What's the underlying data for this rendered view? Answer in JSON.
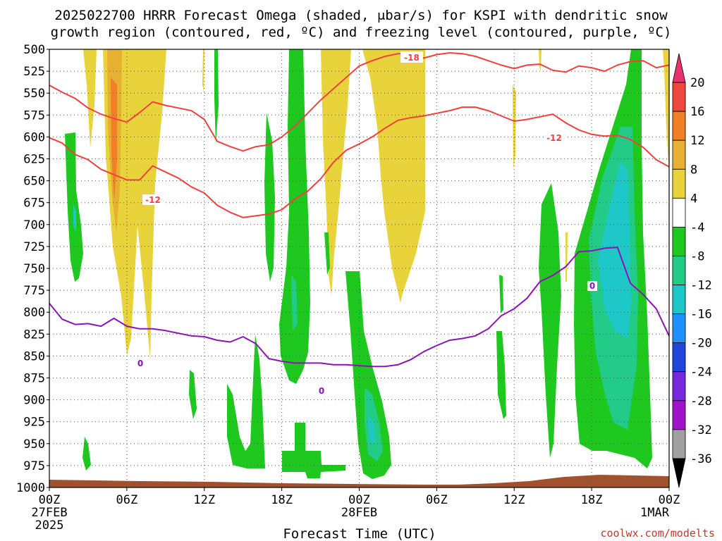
{
  "title": {
    "line1": "2025022700 HRRR Forecast Omega (shaded, μbar/s) for KSPI with dendritic snow",
    "line2": "growth region (contoured, red, ºC) and freezing level (contoured, purple, ºC)"
  },
  "credit": "coolwx.com/modelts",
  "chart_data": {
    "type": "time-height contour",
    "xlabel": "Forecast Time (UTC)",
    "ylabel": "",
    "x_ticks": [
      {
        "hour": 0,
        "label": "00Z",
        "sub": "27FEB",
        "sub2": "2025"
      },
      {
        "hour": 6,
        "label": "06Z"
      },
      {
        "hour": 12,
        "label": "12Z"
      },
      {
        "hour": 18,
        "label": "18Z"
      },
      {
        "hour": 24,
        "label": "00Z",
        "sub": "28FEB"
      },
      {
        "hour": 30,
        "label": "06Z"
      },
      {
        "hour": 36,
        "label": "12Z"
      },
      {
        "hour": 42,
        "label": "18Z"
      },
      {
        "hour": 48,
        "label": "00Z",
        "sub": "1MAR"
      }
    ],
    "xlim": [
      0,
      48
    ],
    "ylim": [
      1000,
      500
    ],
    "y_ticks": [
      500,
      525,
      550,
      575,
      600,
      625,
      650,
      675,
      700,
      725,
      750,
      775,
      800,
      825,
      850,
      875,
      900,
      925,
      950,
      975,
      1000
    ],
    "grid": true,
    "colorbar": {
      "labels": [
        "20",
        "16",
        "12",
        "8",
        "4",
        "-4",
        "-8",
        "-12",
        "-16",
        "-20",
        "-24",
        "-28",
        "-32",
        "-36"
      ],
      "colors": [
        "#e8336d",
        "#f0473d",
        "#f07f26",
        "#e8b033",
        "#e8d43a",
        "#ffffff",
        "#1ec81e",
        "#22cc88",
        "#1ec8c8",
        "#1e90ff",
        "#1e46dc",
        "#7828dc",
        "#a014c8",
        "#a0a0a0",
        "#000000"
      ]
    },
    "contour_labels": {
      "dgz_top": "-18",
      "dgz_bottom": "-12",
      "dgz_bottom_right": "-12",
      "freezing": "0",
      "freezing_mid": "0",
      "freezing_right": "0"
    },
    "series": [
      {
        "color": "#f04040",
        "values": [
          [
            0,
            541
          ],
          [
            1,
            549
          ],
          [
            2,
            556
          ],
          [
            3,
            567
          ],
          [
            4,
            574
          ],
          [
            5,
            579
          ],
          [
            6,
            583
          ],
          [
            7,
            572
          ],
          [
            8,
            560
          ],
          [
            9,
            564
          ],
          [
            10,
            567
          ],
          [
            11,
            570
          ],
          [
            12,
            580
          ],
          [
            13,
            605
          ],
          [
            14,
            611
          ],
          [
            15,
            616
          ],
          [
            16,
            611
          ],
          [
            17,
            609
          ],
          [
            18,
            600
          ],
          [
            19,
            588
          ],
          [
            20,
            573
          ],
          [
            21,
            558
          ],
          [
            22,
            545
          ],
          [
            23,
            532
          ],
          [
            24,
            519
          ],
          [
            25,
            513
          ],
          [
            26,
            508
          ],
          [
            27,
            505
          ],
          [
            28,
            505
          ],
          [
            29,
            510
          ],
          [
            30,
            506
          ],
          [
            31,
            504
          ],
          [
            32,
            505
          ],
          [
            33,
            508
          ],
          [
            34,
            513
          ],
          [
            35,
            518
          ],
          [
            36,
            522
          ],
          [
            37,
            518
          ],
          [
            38,
            517
          ],
          [
            39,
            524
          ],
          [
            40,
            526
          ],
          [
            41,
            519
          ],
          [
            42,
            521
          ],
          [
            43,
            525
          ],
          [
            44,
            518
          ],
          [
            45,
            514
          ],
          [
            46,
            513
          ],
          [
            47,
            521
          ],
          [
            48,
            518
          ]
        ]
      },
      {
        "color": "#f04040",
        "values": [
          [
            0,
            601
          ],
          [
            1,
            607
          ],
          [
            2,
            620
          ],
          [
            3,
            626
          ],
          [
            4,
            637
          ],
          [
            5,
            643
          ],
          [
            6,
            649
          ],
          [
            7,
            649
          ],
          [
            8,
            633
          ],
          [
            9,
            640
          ],
          [
            10,
            647
          ],
          [
            11,
            657
          ],
          [
            12,
            664
          ],
          [
            13,
            678
          ],
          [
            14,
            686
          ],
          [
            15,
            692
          ],
          [
            16,
            690
          ],
          [
            17,
            688
          ],
          [
            18,
            683
          ],
          [
            19,
            671
          ],
          [
            20,
            662
          ],
          [
            21,
            648
          ],
          [
            22,
            629
          ],
          [
            23,
            615
          ],
          [
            24,
            608
          ],
          [
            25,
            600
          ],
          [
            26,
            590
          ],
          [
            27,
            581
          ],
          [
            28,
            578
          ],
          [
            29,
            576
          ],
          [
            30,
            573
          ],
          [
            31,
            570
          ],
          [
            32,
            566
          ],
          [
            33,
            566
          ],
          [
            34,
            570
          ],
          [
            35,
            576
          ],
          [
            36,
            582
          ],
          [
            37,
            580
          ],
          [
            38,
            577
          ],
          [
            39,
            574
          ],
          [
            40,
            584
          ],
          [
            41,
            592
          ],
          [
            42,
            597
          ],
          [
            43,
            599
          ],
          [
            44,
            598
          ],
          [
            45,
            603
          ],
          [
            46,
            612
          ],
          [
            47,
            626
          ],
          [
            48,
            634
          ]
        ]
      },
      {
        "color": "#8c14b4",
        "values": [
          [
            0,
            790
          ],
          [
            1,
            808
          ],
          [
            2,
            814
          ],
          [
            3,
            813
          ],
          [
            4,
            816
          ],
          [
            5,
            807
          ],
          [
            6,
            816
          ],
          [
            7,
            819
          ],
          [
            8,
            819
          ],
          [
            9,
            821
          ],
          [
            10,
            824
          ],
          [
            11,
            827
          ],
          [
            12,
            828
          ],
          [
            13,
            832
          ],
          [
            14,
            834
          ],
          [
            15,
            828
          ],
          [
            16,
            836
          ],
          [
            17,
            853
          ],
          [
            18,
            856
          ],
          [
            19,
            858
          ],
          [
            20,
            858
          ],
          [
            21,
            858
          ],
          [
            22,
            860
          ],
          [
            23,
            860
          ],
          [
            24,
            861
          ],
          [
            25,
            862
          ],
          [
            26,
            862
          ],
          [
            27,
            860
          ],
          [
            28,
            854
          ],
          [
            29,
            845
          ],
          [
            30,
            838
          ],
          [
            31,
            832
          ],
          [
            32,
            830
          ],
          [
            33,
            827
          ],
          [
            34,
            819
          ],
          [
            35,
            804
          ],
          [
            36,
            796
          ],
          [
            37,
            784
          ],
          [
            38,
            765
          ],
          [
            39,
            758
          ],
          [
            40,
            748
          ],
          [
            41,
            731
          ],
          [
            42,
            730
          ],
          [
            43,
            727
          ],
          [
            44,
            726
          ],
          [
            45,
            767
          ],
          [
            46,
            780
          ],
          [
            47,
            796
          ],
          [
            48,
            827
          ]
        ]
      }
    ]
  }
}
